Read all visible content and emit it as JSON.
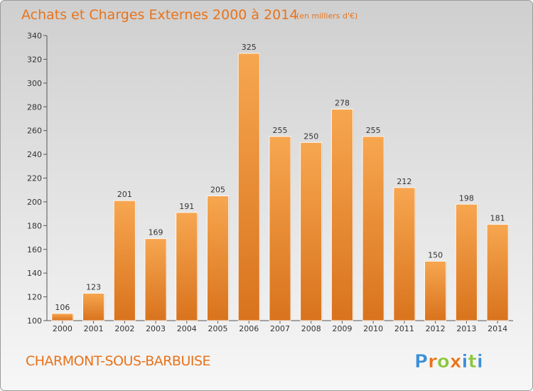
{
  "title": "Achats et Charges Externes 2000 à 2014",
  "unit": "(en milliers d'€)",
  "commune": "CHARMONT-SOUS-BARBUISE",
  "brand": {
    "letters": [
      {
        "ch": "P",
        "color": "#3d8fd6"
      },
      {
        "ch": "r",
        "color": "#e8731a"
      },
      {
        "ch": "o",
        "color": "#8cc63e"
      },
      {
        "ch": "x",
        "color": "#e8731a"
      },
      {
        "ch": "i",
        "color": "#3d8fd6"
      },
      {
        "ch": "t",
        "color": "#8cc63e"
      },
      {
        "ch": "i",
        "color": "#3d8fd6"
      }
    ]
  },
  "colors": {
    "background_top": "#cfcfcf",
    "background_bottom": "#f7f7f7",
    "bar_light": "#f7a650",
    "bar_dark": "#d9731d",
    "accent": "#e8731a"
  },
  "chart_data": {
    "type": "bar",
    "title": "Achats et Charges Externes 2000 à 2014",
    "subtitle": "(en milliers d'€)",
    "xlabel": "",
    "ylabel": "",
    "categories": [
      "2000",
      "2001",
      "2002",
      "2003",
      "2004",
      "2005",
      "2006",
      "2007",
      "2008",
      "2009",
      "2010",
      "2011",
      "2012",
      "2013",
      "2014"
    ],
    "values": [
      106,
      123,
      201,
      169,
      191,
      205,
      325,
      255,
      250,
      278,
      255,
      212,
      150,
      198,
      181
    ],
    "ylim": [
      100,
      340
    ],
    "yticks": [
      100,
      120,
      140,
      160,
      180,
      200,
      220,
      240,
      260,
      280,
      300,
      320,
      340
    ],
    "grid": false,
    "legend": "none"
  }
}
